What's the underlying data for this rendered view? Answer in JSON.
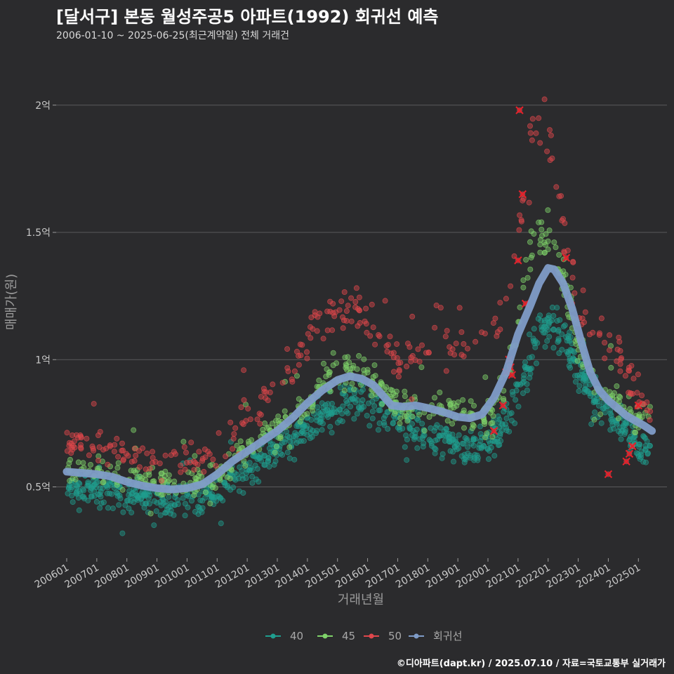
{
  "title": "[달서구] 본동 월성주공5 아파트(1992) 회귀선 예측",
  "subtitle": "2006-01-10 ~ 2025-06-25(최근계약일) 전체 거래건",
  "credit": "©디아파트(dapt.kr) / 2025.07.10 / 자료=국토교통부 실거래가",
  "colors": {
    "background": "#2b2b2d",
    "grid": "#5a5a5c",
    "s40": "#1f9e8f",
    "s45": "#7fd36a",
    "s50": "#e0474c",
    "regression": "#7f9cc8",
    "cross": "#e8202a"
  },
  "chart_data": {
    "type": "scatter",
    "title": "[달서구] 본동 월성주공5 아파트(1992) 회귀선 예측",
    "xlabel": "거래년월",
    "ylabel": "매매가(원)",
    "xlim": [
      2005.65,
      2025.95
    ],
    "ylim": [
      0.22,
      2.22
    ],
    "grid": true,
    "legend_position": "bottom",
    "x_ticks": [
      {
        "value": 2006,
        "label": "200601"
      },
      {
        "value": 2007,
        "label": "200701"
      },
      {
        "value": 2008,
        "label": "200801"
      },
      {
        "value": 2009,
        "label": "200901"
      },
      {
        "value": 2010,
        "label": "201001"
      },
      {
        "value": 2011,
        "label": "201101"
      },
      {
        "value": 2012,
        "label": "201201"
      },
      {
        "value": 2013,
        "label": "201301"
      },
      {
        "value": 2014,
        "label": "201401"
      },
      {
        "value": 2015,
        "label": "201501"
      },
      {
        "value": 2016,
        "label": "201601"
      },
      {
        "value": 2017,
        "label": "201701"
      },
      {
        "value": 2018,
        "label": "201801"
      },
      {
        "value": 2019,
        "label": "201901"
      },
      {
        "value": 2020,
        "label": "202001"
      },
      {
        "value": 2021,
        "label": "202101"
      },
      {
        "value": 2022,
        "label": "202201"
      },
      {
        "value": 2023,
        "label": "202301"
      },
      {
        "value": 2024,
        "label": "202401"
      },
      {
        "value": 2025,
        "label": "202501"
      }
    ],
    "y_ticks": [
      {
        "value": 0.5,
        "label": "0.5억"
      },
      {
        "value": 1.0,
        "label": "1억"
      },
      {
        "value": 1.5,
        "label": "1.5억"
      },
      {
        "value": 2.0,
        "label": "2억"
      }
    ],
    "series": [
      {
        "name": "40",
        "kind": "scatter-trend",
        "color_key": "s40",
        "trend": [
          [
            2006.0,
            0.48
          ],
          [
            2007.0,
            0.49
          ],
          [
            2008.0,
            0.47
          ],
          [
            2009.0,
            0.45
          ],
          [
            2010.0,
            0.44
          ],
          [
            2011.0,
            0.48
          ],
          [
            2012.0,
            0.57
          ],
          [
            2013.0,
            0.65
          ],
          [
            2014.0,
            0.74
          ],
          [
            2014.5,
            0.79
          ],
          [
            2015.0,
            0.82
          ],
          [
            2015.5,
            0.84
          ],
          [
            2016.0,
            0.83
          ],
          [
            2016.5,
            0.8
          ],
          [
            2017.0,
            0.76
          ],
          [
            2017.5,
            0.73
          ],
          [
            2018.0,
            0.7
          ],
          [
            2018.5,
            0.68
          ],
          [
            2019.0,
            0.66
          ],
          [
            2019.5,
            0.65
          ],
          [
            2020.0,
            0.68
          ],
          [
            2020.5,
            0.74
          ],
          [
            2021.0,
            0.88
          ],
          [
            2021.4,
            1.02
          ],
          [
            2021.8,
            1.12
          ],
          [
            2022.2,
            1.14
          ],
          [
            2022.6,
            1.08
          ],
          [
            2023.0,
            0.95
          ],
          [
            2023.5,
            0.86
          ],
          [
            2024.0,
            0.8
          ],
          [
            2024.5,
            0.73
          ],
          [
            2025.0,
            0.66
          ],
          [
            2025.4,
            0.63
          ]
        ],
        "count": 900,
        "spread": 0.035
      },
      {
        "name": "45",
        "kind": "scatter-trend",
        "color_key": "s45",
        "trend": [
          [
            2006.0,
            0.57
          ],
          [
            2007.0,
            0.57
          ],
          [
            2008.0,
            0.54
          ],
          [
            2009.0,
            0.52
          ],
          [
            2010.0,
            0.51
          ],
          [
            2011.0,
            0.55
          ],
          [
            2012.0,
            0.65
          ],
          [
            2013.0,
            0.73
          ],
          [
            2014.0,
            0.83
          ],
          [
            2014.5,
            0.9
          ],
          [
            2015.0,
            0.94
          ],
          [
            2015.5,
            0.97
          ],
          [
            2016.0,
            0.94
          ],
          [
            2016.5,
            0.87
          ],
          [
            2017.0,
            0.83
          ],
          [
            2017.5,
            0.82
          ],
          [
            2018.0,
            0.82
          ],
          [
            2018.5,
            0.82
          ],
          [
            2019.0,
            0.8
          ],
          [
            2019.5,
            0.77
          ],
          [
            2020.0,
            0.78
          ],
          [
            2020.5,
            0.84
          ],
          [
            2021.0,
            1.15
          ],
          [
            2021.3,
            1.4
          ],
          [
            2021.6,
            1.48
          ],
          [
            2022.0,
            1.45
          ],
          [
            2022.5,
            1.32
          ],
          [
            2023.0,
            1.05
          ],
          [
            2023.5,
            0.93
          ],
          [
            2024.0,
            0.86
          ],
          [
            2024.5,
            0.8
          ],
          [
            2025.0,
            0.76
          ],
          [
            2025.4,
            0.8
          ]
        ],
        "count": 560,
        "spread": 0.03
      },
      {
        "name": "50",
        "kind": "scatter-trend",
        "color_key": "s50",
        "trend": [
          [
            2006.0,
            0.68
          ],
          [
            2007.0,
            0.67
          ],
          [
            2008.0,
            0.62
          ],
          [
            2009.0,
            0.6
          ],
          [
            2010.0,
            0.6
          ],
          [
            2011.0,
            0.64
          ],
          [
            2012.0,
            0.77
          ],
          [
            2013.0,
            0.88
          ],
          [
            2014.0,
            1.07
          ],
          [
            2014.5,
            1.16
          ],
          [
            2015.0,
            1.18
          ],
          [
            2015.5,
            1.2
          ],
          [
            2016.0,
            1.12
          ],
          [
            2016.5,
            1.08
          ],
          [
            2017.0,
            1.02
          ],
          [
            2017.5,
            1.01
          ],
          [
            2018.0,
            1.05
          ],
          [
            2018.5,
            1.09
          ],
          [
            2019.0,
            1.08
          ],
          [
            2019.5,
            1.06
          ],
          [
            2020.0,
            1.1
          ],
          [
            2020.5,
            1.15
          ],
          [
            2021.0,
            1.45
          ],
          [
            2021.3,
            1.8
          ],
          [
            2021.6,
            1.95
          ],
          [
            2022.0,
            1.9
          ],
          [
            2022.5,
            1.5
          ],
          [
            2023.0,
            1.25
          ],
          [
            2023.5,
            1.12
          ],
          [
            2024.0,
            1.06
          ],
          [
            2024.5,
            1.0
          ],
          [
            2025.0,
            0.85
          ],
          [
            2025.4,
            0.8
          ]
        ],
        "count": 320,
        "spread": 0.035
      },
      {
        "name": "회귀선",
        "kind": "line",
        "color_key": "regression",
        "points": [
          [
            2006.0,
            0.56
          ],
          [
            2006.5,
            0.555
          ],
          [
            2007.0,
            0.55
          ],
          [
            2007.5,
            0.54
          ],
          [
            2008.0,
            0.52
          ],
          [
            2008.5,
            0.505
          ],
          [
            2009.0,
            0.495
          ],
          [
            2009.5,
            0.49
          ],
          [
            2010.0,
            0.495
          ],
          [
            2010.5,
            0.51
          ],
          [
            2011.0,
            0.55
          ],
          [
            2011.5,
            0.6
          ],
          [
            2012.0,
            0.64
          ],
          [
            2012.5,
            0.68
          ],
          [
            2013.0,
            0.72
          ],
          [
            2013.5,
            0.77
          ],
          [
            2014.0,
            0.83
          ],
          [
            2014.5,
            0.88
          ],
          [
            2015.0,
            0.92
          ],
          [
            2015.4,
            0.935
          ],
          [
            2015.8,
            0.925
          ],
          [
            2016.2,
            0.9
          ],
          [
            2016.5,
            0.86
          ],
          [
            2016.8,
            0.82
          ],
          [
            2017.2,
            0.815
          ],
          [
            2017.6,
            0.82
          ],
          [
            2018.0,
            0.81
          ],
          [
            2018.5,
            0.795
          ],
          [
            2019.0,
            0.775
          ],
          [
            2019.4,
            0.77
          ],
          [
            2019.8,
            0.785
          ],
          [
            2020.2,
            0.85
          ],
          [
            2020.6,
            0.95
          ],
          [
            2021.0,
            1.1
          ],
          [
            2021.4,
            1.21
          ],
          [
            2021.7,
            1.3
          ],
          [
            2022.0,
            1.36
          ],
          [
            2022.2,
            1.355
          ],
          [
            2022.5,
            1.3
          ],
          [
            2022.8,
            1.2
          ],
          [
            2023.1,
            1.07
          ],
          [
            2023.4,
            0.95
          ],
          [
            2023.7,
            0.88
          ],
          [
            2024.0,
            0.84
          ],
          [
            2024.3,
            0.81
          ],
          [
            2024.6,
            0.78
          ],
          [
            2024.9,
            0.76
          ],
          [
            2025.2,
            0.74
          ],
          [
            2025.45,
            0.72
          ]
        ]
      }
    ],
    "outliers_marked": [
      [
        2021.05,
        1.98
      ],
      [
        2021.15,
        1.65
      ],
      [
        2021.0,
        1.39
      ],
      [
        2021.25,
        1.22
      ],
      [
        2020.7,
        1.0
      ],
      [
        2020.75,
        0.97
      ],
      [
        2020.8,
        0.94
      ],
      [
        2020.6,
        0.95
      ],
      [
        2020.5,
        0.82
      ],
      [
        2020.2,
        0.72
      ],
      [
        2022.6,
        1.4
      ],
      [
        2024.0,
        0.55
      ],
      [
        2024.6,
        0.6
      ],
      [
        2024.7,
        0.63
      ],
      [
        2024.8,
        0.66
      ],
      [
        2025.0,
        0.82
      ]
    ]
  },
  "legend": [
    {
      "label": "40",
      "color_key": "s40"
    },
    {
      "label": "45",
      "color_key": "s45"
    },
    {
      "label": "50",
      "color_key": "s50"
    },
    {
      "label": "회귀선",
      "color_key": "regression"
    }
  ]
}
